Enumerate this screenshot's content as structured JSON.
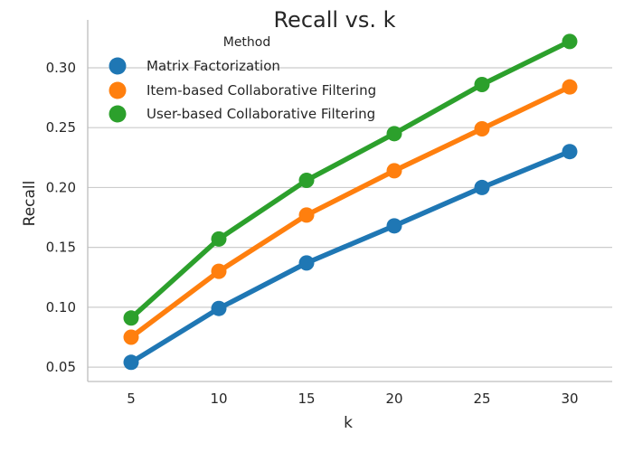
{
  "chart_data": {
    "type": "line",
    "title": "Recall vs. k",
    "xlabel": "k",
    "ylabel": "Recall",
    "categories": [
      "5",
      "10",
      "15",
      "20",
      "25",
      "30"
    ],
    "ylim": [
      0.038,
      0.34
    ],
    "yticks": [
      "0.05",
      "0.10",
      "0.15",
      "0.20",
      "0.25",
      "0.30"
    ],
    "grid": "horizontal",
    "legend": {
      "title": "Method",
      "placement": "top-left"
    },
    "series": [
      {
        "name": "Matrix Factorization",
        "color": "#1f77b4",
        "values": [
          0.054,
          0.099,
          0.137,
          0.168,
          0.2,
          0.23
        ]
      },
      {
        "name": "Item-based Collaborative Filtering",
        "color": "#ff7f0e",
        "values": [
          0.075,
          0.13,
          0.177,
          0.214,
          0.249,
          0.284
        ]
      },
      {
        "name": "User-based Collaborative Filtering",
        "color": "#2ca02c",
        "values": [
          0.091,
          0.157,
          0.206,
          0.245,
          0.286,
          0.322
        ]
      }
    ]
  }
}
